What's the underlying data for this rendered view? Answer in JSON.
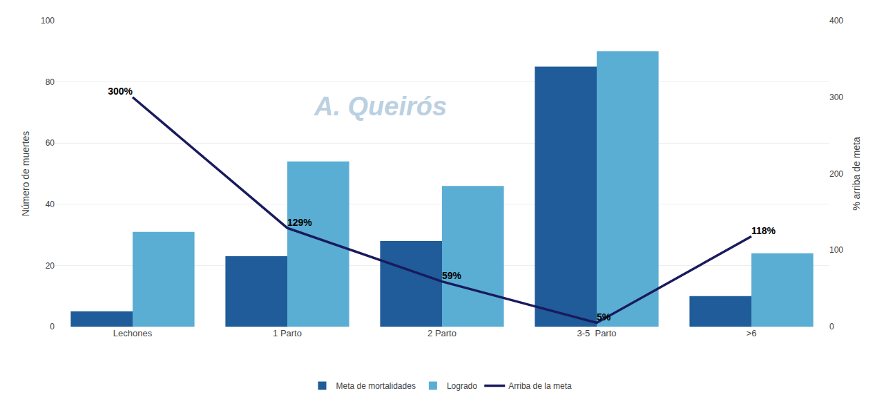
{
  "chart_data": {
    "type": "bar",
    "categories": [
      "Lechones",
      "1 Parto",
      "2 Parto",
      "3-5  Parto",
      ">6"
    ],
    "series": [
      {
        "name": "Meta de mortalidades",
        "type": "bar",
        "color": "#1f5c99",
        "values": [
          5,
          23,
          28,
          85,
          10
        ]
      },
      {
        "name": "Logrado",
        "type": "bar",
        "color": "#5aaed4",
        "values": [
          31,
          54,
          46,
          90,
          24
        ]
      },
      {
        "name": "Arriba de la meta",
        "type": "line",
        "axis": "y2",
        "color": "#1a1a5e",
        "values": [
          300,
          129,
          59,
          5,
          118
        ],
        "value_labels": [
          "300%",
          "129%",
          "59%",
          "5%",
          "118%"
        ],
        "data_labels": true
      }
    ],
    "ylabel": "Número de muertes",
    "y2label": "% arriba de meta",
    "ylim": [
      0,
      100
    ],
    "yticks": [
      0,
      20,
      40,
      60,
      80,
      100
    ],
    "y2lim": [
      0,
      400
    ],
    "y2ticks": [
      0,
      100,
      200,
      300,
      400
    ],
    "grid": true,
    "legend": "bottom",
    "annotations": [
      "A. Queirós"
    ]
  }
}
